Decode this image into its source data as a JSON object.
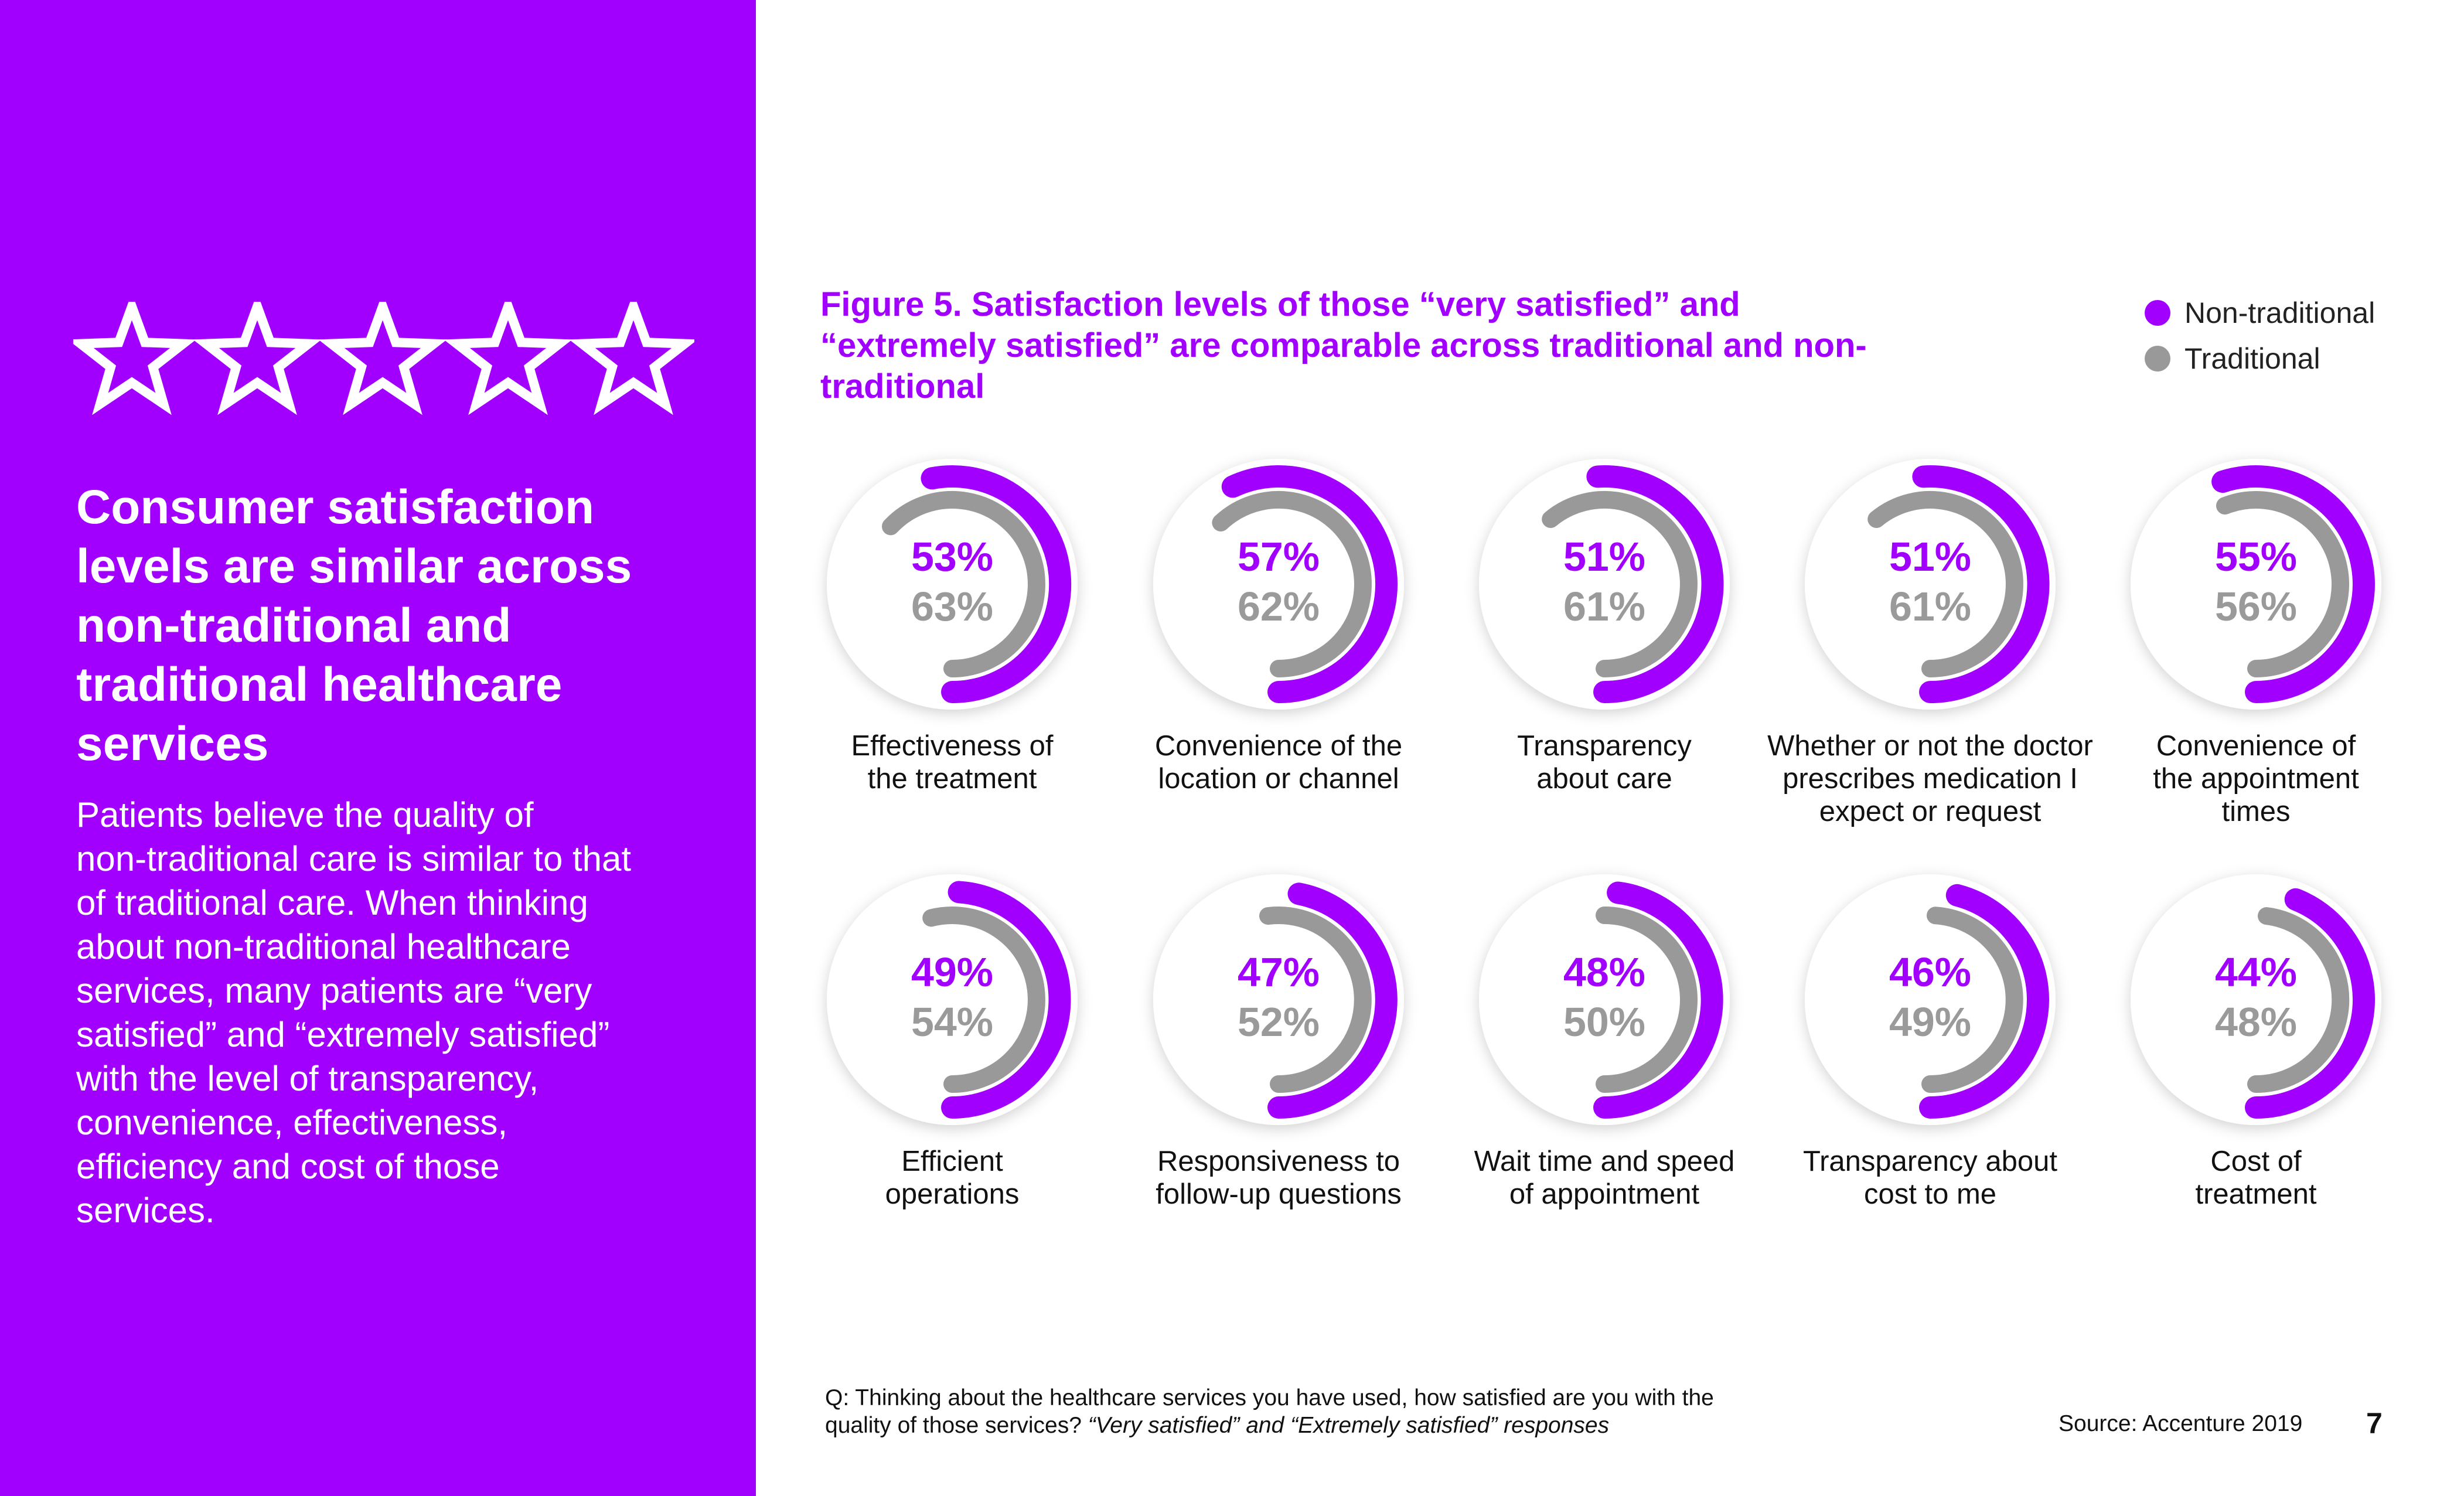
{
  "left_panel": {
    "star_count": 5,
    "headline_lines": [
      "Consumer satisfaction",
      "levels are similar across",
      "non-traditional and",
      "traditional healthcare",
      "services"
    ],
    "body_lines": [
      "Patients believe the quality of",
      "non-traditional care is similar to that",
      "of traditional care. When thinking",
      "about non-traditional healthcare",
      "services, many patients are “very",
      "satisfied” and “extremely satisfied”",
      "with the level of transparency,",
      "convenience, effectiveness,",
      "efficiency and cost of those",
      "services."
    ]
  },
  "figure": {
    "title_lines": [
      "Figure 5. Satisfaction levels of those “very satisfied” and",
      "“extremely satisfied” are comparable across traditional and non-",
      "traditional"
    ],
    "legend": [
      {
        "label": "Non-traditional",
        "color": "#a100ff"
      },
      {
        "label": "Traditional",
        "color": "#999999"
      }
    ]
  },
  "chart_data": {
    "type": "donut",
    "title": "Figure 5. Satisfaction levels of those “very satisfied” and “extremely satisfied” are comparable across traditional and non-traditional",
    "unit": "%",
    "series": [
      {
        "name": "Non-traditional",
        "color": "#a100ff"
      },
      {
        "name": "Traditional",
        "color": "#999999"
      }
    ],
    "items": [
      {
        "label_lines": [
          "Effectiveness of",
          "the treatment"
        ],
        "non_traditional": 53,
        "traditional": 63
      },
      {
        "label_lines": [
          "Convenience of the",
          "location or channel"
        ],
        "non_traditional": 57,
        "traditional": 62
      },
      {
        "label_lines": [
          "Transparency",
          "about care"
        ],
        "non_traditional": 51,
        "traditional": 61
      },
      {
        "label_lines": [
          "Whether or not the doctor",
          "prescribes medication I",
          "expect or request"
        ],
        "non_traditional": 51,
        "traditional": 61
      },
      {
        "label_lines": [
          "Convenience of",
          "the appointment",
          "times"
        ],
        "non_traditional": 55,
        "traditional": 56
      },
      {
        "label_lines": [
          "Efficient",
          "operations"
        ],
        "non_traditional": 49,
        "traditional": 54
      },
      {
        "label_lines": [
          "Responsiveness to",
          "follow-up questions"
        ],
        "non_traditional": 47,
        "traditional": 52
      },
      {
        "label_lines": [
          "Wait time and speed",
          "of appointment"
        ],
        "non_traditional": 48,
        "traditional": 50
      },
      {
        "label_lines": [
          "Transparency about",
          "cost to me"
        ],
        "non_traditional": 46,
        "traditional": 49
      },
      {
        "label_lines": [
          "Cost of",
          "treatment"
        ],
        "non_traditional": 44,
        "traditional": 48
      }
    ]
  },
  "footer": {
    "question_line1": "Q: Thinking about the healthcare services you have used, how satisfied are you with the",
    "question_line2_prefix": "quality of those services? ",
    "question_line2_italic": "“Very satisfied” and “Extremely satisfied” responses",
    "source": "Source: Accenture 2019",
    "page_number": "7"
  }
}
